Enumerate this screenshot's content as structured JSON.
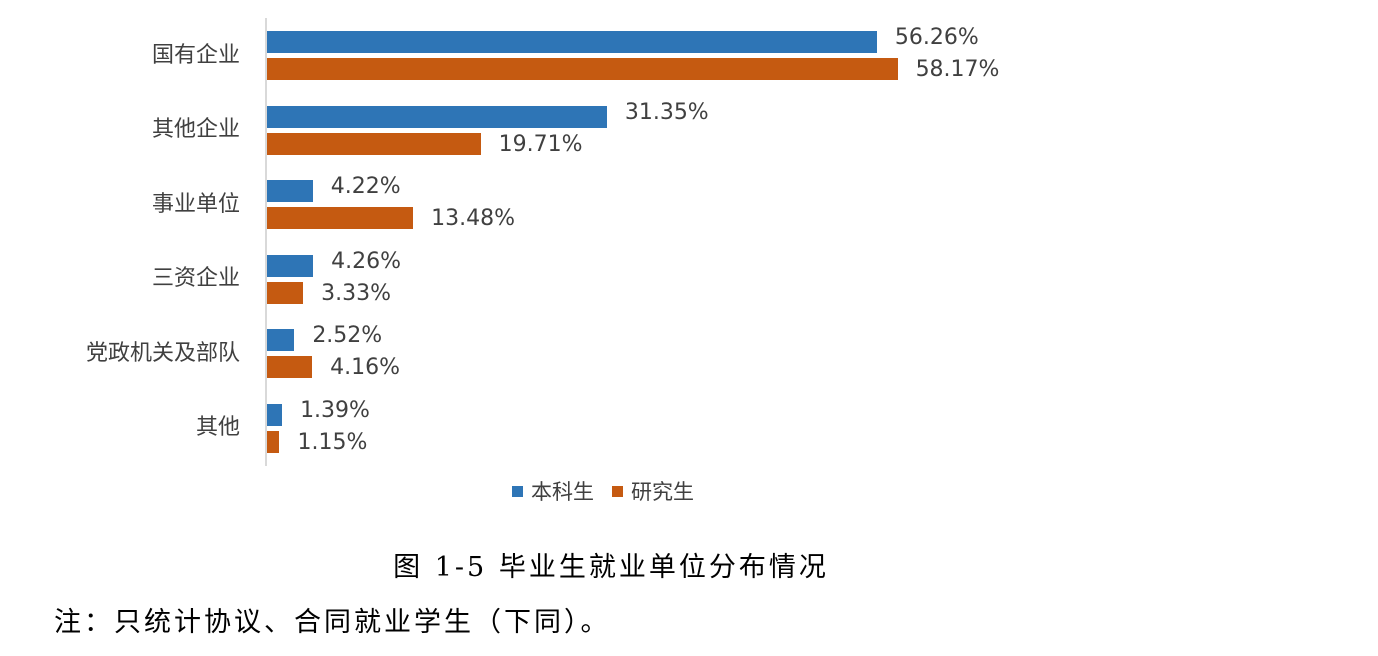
{
  "chart_data": {
    "type": "bar",
    "orientation": "horizontal",
    "title": "图 1-5 毕业生就业单位分布情况",
    "xlabel": "",
    "ylabel": "",
    "categories": [
      "国有企业",
      "其他企业",
      "事业单位",
      "三资企业",
      "党政机关及部队",
      "其他"
    ],
    "series": [
      {
        "name": "本科生",
        "color": "#2e75b6",
        "values": [
          56.26,
          31.35,
          4.22,
          4.26,
          2.52,
          1.39
        ],
        "labels": [
          "56.26%",
          "31.35%",
          "4.22%",
          "4.26%",
          "2.52%",
          "1.39%"
        ]
      },
      {
        "name": "研究生",
        "color": "#c55a11",
        "values": [
          58.17,
          19.71,
          13.48,
          3.33,
          4.16,
          1.15
        ],
        "labels": [
          "58.17%",
          "19.71%",
          "13.48%",
          "3.33%",
          "4.16%",
          "1.15%"
        ]
      }
    ],
    "unit": "%",
    "grid": false,
    "legend_position": "bottom",
    "xlim": [
      0,
      100
    ]
  },
  "caption": "图 1-5  毕业生就业单位分布情况",
  "note": "注：只统计协议、合同就业学生（下同）。"
}
